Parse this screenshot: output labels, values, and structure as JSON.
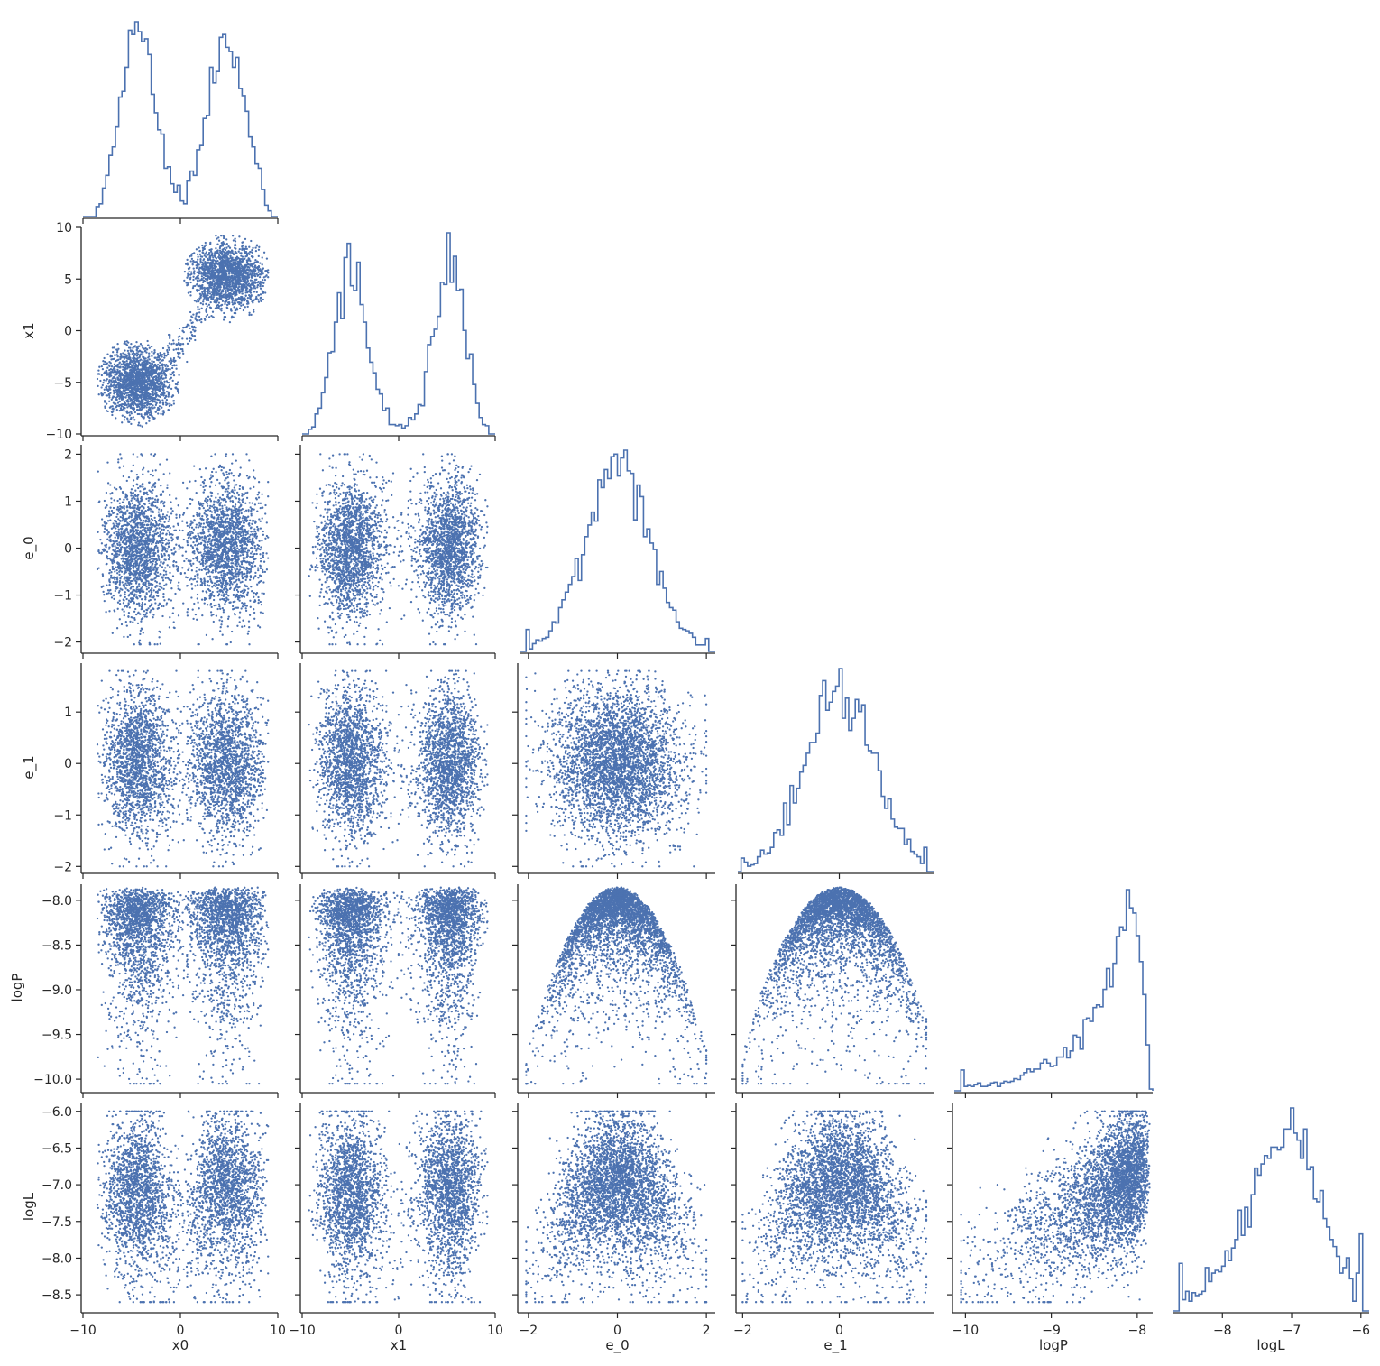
{
  "chart_data": {
    "type": "scatter",
    "title": "",
    "layout": "corner",
    "color": "#4c72b0",
    "grid": false,
    "legend": "none",
    "variables": [
      {
        "name": "x0",
        "label": "x0",
        "range": [
          -10,
          10
        ],
        "ticks": [
          -10,
          0,
          10
        ],
        "tick_labels": [
          "−10",
          "0",
          "10"
        ]
      },
      {
        "name": "x1",
        "label": "x1",
        "range": [
          -10,
          10
        ],
        "ticks": [
          -10,
          -5,
          0,
          5,
          10
        ],
        "tick_labels": [
          "−10",
          "−5",
          "0",
          "5",
          "10"
        ],
        "xticks": [
          -10,
          0,
          10
        ],
        "xtick_labels": [
          "−10",
          "0",
          "10"
        ]
      },
      {
        "name": "e_0",
        "label": "e_0",
        "range": [
          -2.2,
          2.2
        ],
        "ticks": [
          -2,
          -1,
          0,
          1,
          2
        ],
        "tick_labels": [
          "−2",
          "−1",
          "0",
          "1",
          "2"
        ],
        "xticks": [
          -2,
          0,
          2
        ],
        "xtick_labels": [
          "−2",
          "0",
          "2"
        ]
      },
      {
        "name": "e_1",
        "label": "e_1",
        "range": [
          -2.1,
          1.95
        ],
        "ticks": [
          -2,
          -1,
          0,
          1
        ],
        "tick_labels": [
          "−2",
          "−1",
          "0",
          "1"
        ],
        "xticks": [
          -2,
          0
        ],
        "xtick_labels": [
          "−2",
          "0"
        ]
      },
      {
        "name": "logP",
        "label": "logP",
        "range": [
          -10.13,
          -7.82
        ],
        "ticks": [
          -10.0,
          -9.5,
          -9.0,
          -8.5,
          -8.0
        ],
        "tick_labels": [
          "−10.0",
          "−9.5",
          "−9.0",
          "−8.5",
          "−8.0"
        ],
        "xticks": [
          -10,
          -9,
          -8
        ],
        "xtick_labels": [
          "−10",
          "−9",
          "−8"
        ]
      },
      {
        "name": "logL",
        "label": "logL",
        "range": [
          -8.72,
          -5.88
        ],
        "ticks": [
          -8.5,
          -8.0,
          -7.5,
          -7.0,
          -6.5,
          -6.0
        ],
        "tick_labels": [
          "−8.5",
          "−8.0",
          "−7.5",
          "−7.0",
          "−6.5",
          "−6.0"
        ],
        "xticks": [
          -8,
          -7,
          -6
        ],
        "xtick_labels": [
          "−8",
          "−7",
          "−6"
        ]
      }
    ],
    "histograms": {
      "x0": {
        "type": "histogram",
        "x_range": [
          -10,
          10
        ],
        "approx_shape": "bimodal, peaks near -4 and 5, dip near 0"
      },
      "x1": {
        "type": "histogram",
        "x_range": [
          -10,
          10
        ],
        "approx_shape": "bimodal, peaks near -4 and 5, dip near 0"
      },
      "e_0": {
        "type": "histogram",
        "x_range": [
          -2.2,
          2.2
        ],
        "approx_shape": "gaussian centered near 0"
      },
      "e_1": {
        "type": "histogram",
        "x_range": [
          -2.1,
          1.95
        ],
        "approx_shape": "gaussian centered near 0"
      },
      "logP": {
        "type": "histogram",
        "x_range": [
          -10.13,
          -7.82
        ],
        "approx_shape": "rising exponentially to peak at -7.85"
      },
      "logL": {
        "type": "histogram",
        "x_range": [
          -8.72,
          -5.88
        ],
        "approx_shape": "skewed, peak near -6.8"
      }
    },
    "scatter_summary": "corner plot of posterior samples: bimodal x0/x1 clusters near (-4,-5) and (5,5); e_0, e_1 gaussian; logP = parabolic envelope with max -7.85"
  }
}
